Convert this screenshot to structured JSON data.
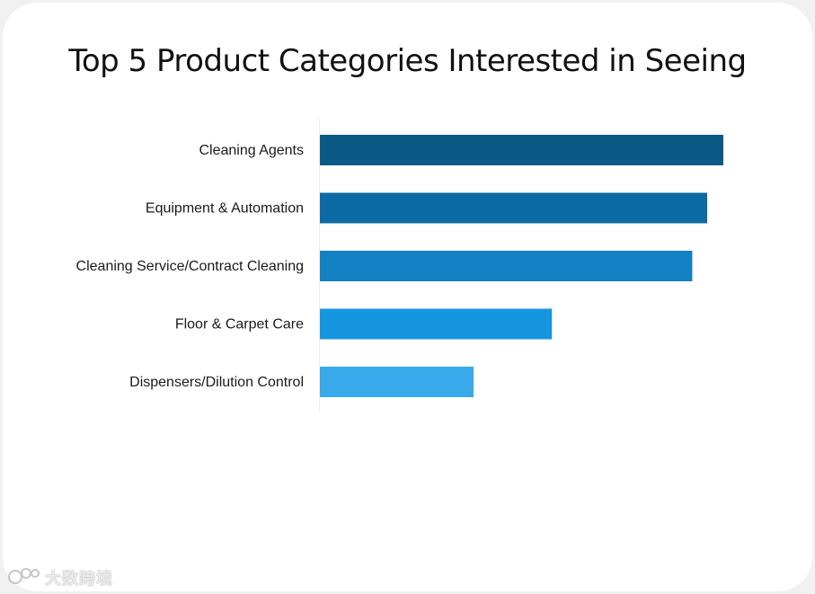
{
  "chart_data": {
    "type": "bar",
    "orientation": "horizontal",
    "title": "Top 5 Product Categories Interested in Seeing",
    "categories": [
      "Cleaning Agents",
      "Equipment & Automation",
      "Cleaning Service/Contract Cleaning",
      "Floor & Carpet Care",
      "Dispensers/Dilution Control"
    ],
    "values": [
      100,
      96,
      92.3,
      57.5,
      38.1
    ],
    "colors": [
      "#0b5a86",
      "#0c6ba4",
      "#1380c3",
      "#1796e0",
      "#38a9ea"
    ],
    "xlim": [
      0,
      100
    ],
    "grid": false,
    "legend": "none"
  },
  "watermark": {
    "text": "大数跨境"
  }
}
